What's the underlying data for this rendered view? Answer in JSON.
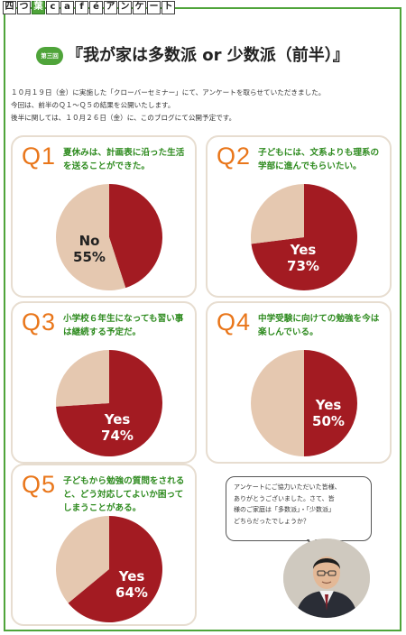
{
  "header": {
    "tab_chars": [
      "四",
      "つ",
      "葉",
      "c",
      "a",
      "f",
      "é",
      "ア",
      "ン",
      "ケ",
      "ー",
      "ト"
    ]
  },
  "title": {
    "badge": "第三回",
    "text": "『我が家は多数派 or 少数派（前半）』"
  },
  "intro": {
    "lines": [
      "１０月１９日（金）に実施した「クローバーセミナー」にて、アンケートを取らせていただきました。",
      "今回は、前半のＱ１～Ｑ５の結果を公開いたします。",
      "後半に関しては、１０月２６日（金）に、このブログにて公開予定です。"
    ]
  },
  "colors": {
    "yes": "#a31b22",
    "no": "#e5c8b0",
    "accent": "#e9761a",
    "question": "#2e8b1f",
    "frame": "#4fa43a"
  },
  "questions": [
    {
      "q": "Q1",
      "text": "夏休みは、計画表に沿った生活を送ることができた。",
      "label_word": "No",
      "label_pct": "55%"
    },
    {
      "q": "Q2",
      "text": "子どもには、文系よりも理系の学部に進んでもらいたい。",
      "label_word": "Yes",
      "label_pct": "73%"
    },
    {
      "q": "Q3",
      "text": "小学校６年生になっても習い事は継続する予定だ。",
      "label_word": "Yes",
      "label_pct": "74%"
    },
    {
      "q": "Q4",
      "text": "中学受験に向けての勉強を今は楽しんでいる。",
      "label_word": "Yes",
      "label_pct": "50%"
    },
    {
      "q": "Q5",
      "text": "子どもから勉強の質問をされると、どう対応してよいか困ってしまうことがある。",
      "label_word": "Yes",
      "label_pct": "64%"
    }
  ],
  "chart_data": [
    {
      "type": "pie",
      "categories": [
        "Yes",
        "No"
      ],
      "values": [
        45,
        55
      ]
    },
    {
      "type": "pie",
      "categories": [
        "Yes",
        "No"
      ],
      "values": [
        73,
        27
      ]
    },
    {
      "type": "pie",
      "categories": [
        "Yes",
        "No"
      ],
      "values": [
        74,
        26
      ]
    },
    {
      "type": "pie",
      "categories": [
        "Yes",
        "No"
      ],
      "values": [
        50,
        50
      ]
    },
    {
      "type": "pie",
      "categories": [
        "Yes",
        "No"
      ],
      "values": [
        64,
        36
      ]
    }
  ],
  "bubble": {
    "lines": [
      "アンケートにご協力いただいた皆様、",
      "ありがとうございました。さて、皆",
      "様のご家庭は「多数派」・「少数派」",
      "どちらだったでしょうか？"
    ]
  }
}
